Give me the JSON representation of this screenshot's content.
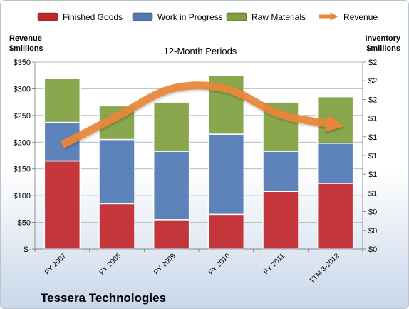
{
  "chart_data": {
    "type": "bar",
    "subtitle": "12-Month Periods",
    "company": "Tessera Technologies",
    "left_axis_title": [
      "Revenue",
      "$millions"
    ],
    "right_axis_title": [
      "Inventory",
      "$millions"
    ],
    "categories": [
      "FY 2007",
      "FY 2008",
      "FY 2009",
      "FY 2010",
      "FY 2011",
      "TTM 3-2012"
    ],
    "ylim": [
      0,
      350
    ],
    "yticks": [
      0,
      50,
      100,
      150,
      200,
      250,
      300,
      350
    ],
    "ytick_labels": [
      "$-",
      "$50",
      "$100",
      "$150",
      "$200",
      "$250",
      "$300",
      "$350"
    ],
    "y2tick_labels": [
      "$0",
      "$0",
      "$0",
      "$1",
      "$1",
      "$1",
      "$1",
      "$1",
      "$2",
      "$2",
      "$2"
    ],
    "grid": true,
    "legend_position": "top",
    "series": [
      {
        "name": "Finished Goods",
        "color": "#c0262b",
        "values": [
          165,
          85,
          55,
          65,
          108,
          123
        ]
      },
      {
        "name": "Work in Progress",
        "color": "#4f78b4",
        "values": [
          72,
          120,
          128,
          150,
          75,
          75
        ]
      },
      {
        "name": "Raw Materials",
        "color": "#7fa03e",
        "values": [
          82,
          63,
          92,
          110,
          92,
          87
        ]
      }
    ],
    "line_series": {
      "name": "Revenue",
      "color": "#e8873a",
      "values": [
        195,
        248,
        300,
        300,
        252,
        233
      ]
    }
  }
}
